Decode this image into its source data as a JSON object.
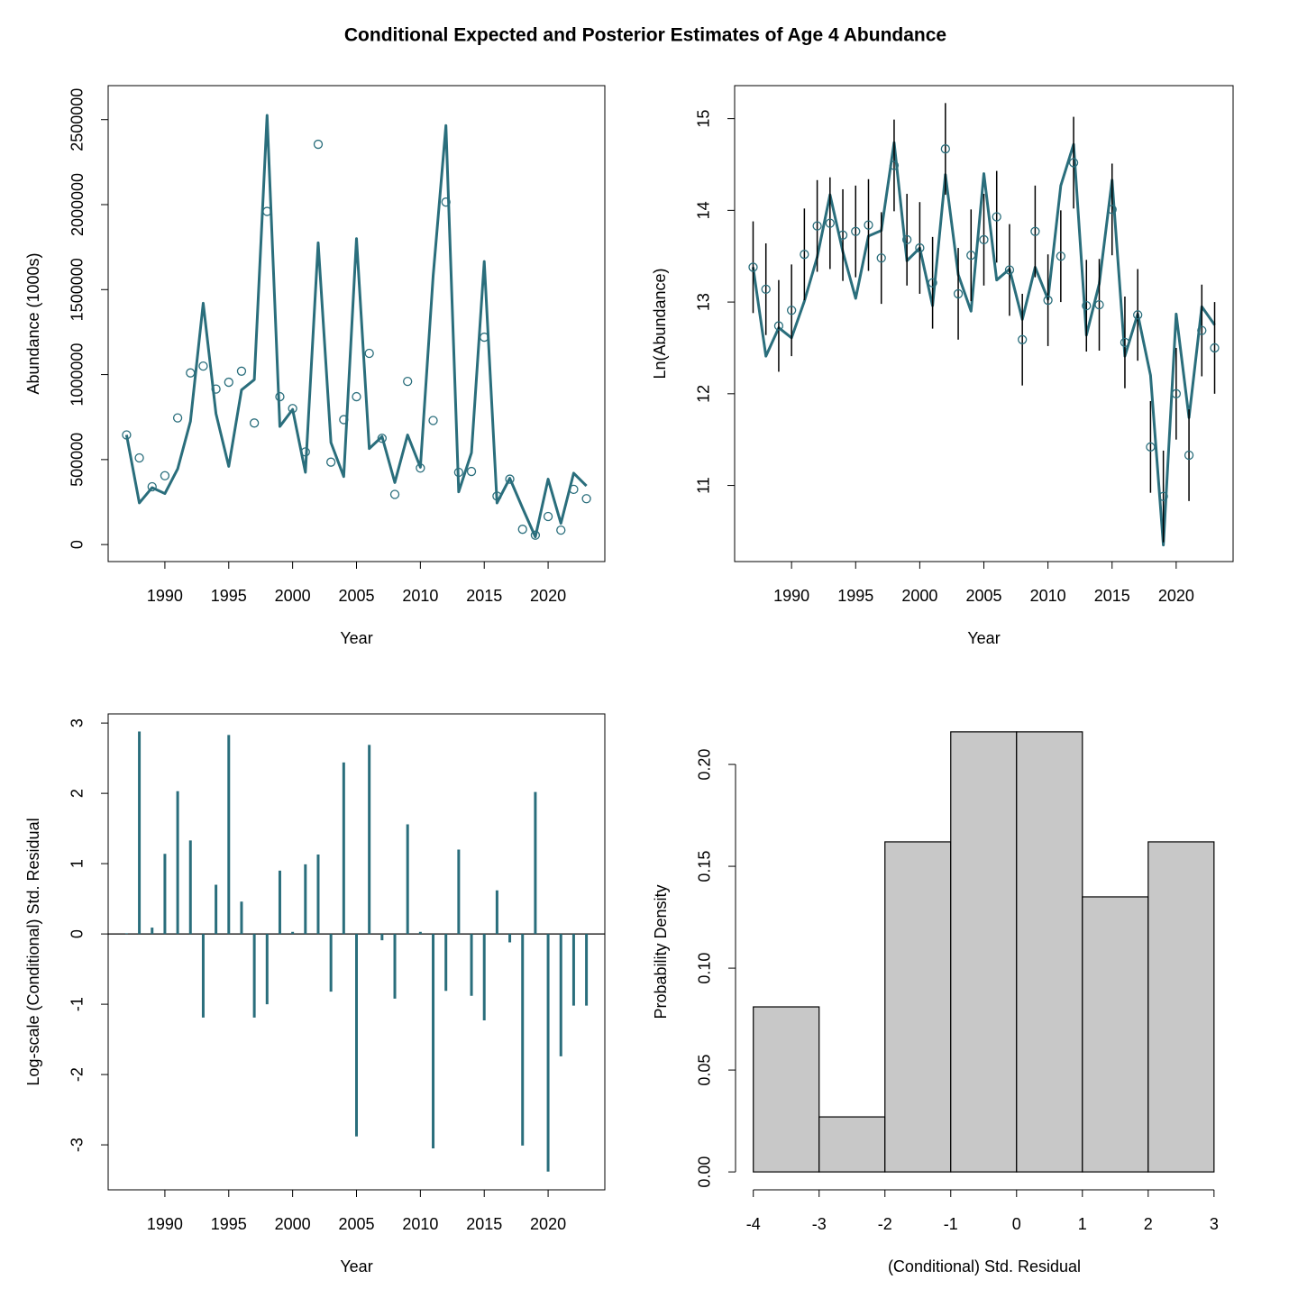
{
  "title": "Conditional Expected and Posterior Estimates of Age 4 Abundance",
  "chart_data": [
    {
      "type": "line",
      "xlabel": "Year",
      "ylabel": "Abundance (1000s)",
      "box": true,
      "x": [
        1987,
        1988,
        1989,
        1990,
        1991,
        1992,
        1993,
        1994,
        1995,
        1996,
        1997,
        1998,
        1999,
        2000,
        2001,
        2002,
        2003,
        2004,
        2005,
        2006,
        2007,
        2008,
        2009,
        2010,
        2011,
        2012,
        2013,
        2014,
        2015,
        2016,
        2017,
        2018,
        2019,
        2020,
        2021,
        2022,
        2023
      ],
      "series": [
        {
          "style": "line",
          "color": "#2a6e7c",
          "values": [
            645000,
            245000,
            335000,
            300000,
            445000,
            725000,
            1420000,
            770000,
            460000,
            910000,
            970000,
            2525000,
            695000,
            795000,
            425000,
            1775000,
            600000,
            400000,
            1800000,
            565000,
            635000,
            365000,
            645000,
            455000,
            1580000,
            2465000,
            310000,
            540000,
            1665000,
            245000,
            390000,
            215000,
            45000,
            385000,
            125000,
            420000,
            345000
          ]
        },
        {
          "style": "points",
          "color": "#2a6e7c",
          "values": [
            645000,
            510000,
            340000,
            405000,
            745000,
            1010000,
            1050000,
            915000,
            955000,
            1020000,
            715000,
            1960000,
            870000,
            800000,
            545000,
            2355000,
            485000,
            735000,
            870000,
            1125000,
            625000,
            295000,
            960000,
            450000,
            730000,
            2015000,
            425000,
            430000,
            1220000,
            285000,
            385000,
            90000,
            55000,
            165000,
            85000,
            325000,
            270000
          ]
        }
      ],
      "xlim": [
        1985.56,
        2024.44
      ],
      "xticks": [
        1990,
        1995,
        2000,
        2005,
        2010,
        2015,
        2020
      ],
      "ylim": [
        -100000,
        2700000
      ],
      "yticks": [
        0,
        500000,
        1000000,
        1500000,
        2000000,
        2500000
      ]
    },
    {
      "type": "line",
      "xlabel": "Year",
      "ylabel": "Ln(Abundance)",
      "box": true,
      "x": [
        1987,
        1988,
        1989,
        1990,
        1991,
        1992,
        1993,
        1994,
        1995,
        1996,
        1997,
        1998,
        1999,
        2000,
        2001,
        2002,
        2003,
        2004,
        2005,
        2006,
        2007,
        2008,
        2009,
        2010,
        2011,
        2012,
        2013,
        2014,
        2015,
        2016,
        2017,
        2018,
        2019,
        2020,
        2021,
        2022,
        2023
      ],
      "series": [
        {
          "style": "line",
          "color": "#2a6e7c",
          "values": [
            13.38,
            12.41,
            12.72,
            12.61,
            13.01,
            13.49,
            14.17,
            13.55,
            13.04,
            13.72,
            13.78,
            14.74,
            13.45,
            13.59,
            12.96,
            14.39,
            13.3,
            12.9,
            14.4,
            13.24,
            13.36,
            12.81,
            13.38,
            13.03,
            14.27,
            14.72,
            12.64,
            13.2,
            14.33,
            12.41,
            12.87,
            12.2,
            10.35,
            12.87,
            11.74,
            12.95,
            12.75
          ]
        },
        {
          "style": "points",
          "color": "#2a6e7c",
          "error_color": "#000000",
          "values": [
            13.38,
            13.14,
            12.74,
            12.91,
            13.52,
            13.83,
            13.86,
            13.73,
            13.77,
            13.84,
            13.48,
            14.49,
            13.68,
            13.59,
            13.21,
            14.67,
            13.09,
            13.51,
            13.68,
            13.93,
            13.35,
            12.59,
            13.77,
            13.02,
            13.5,
            14.52,
            12.96,
            12.97,
            14.01,
            12.56,
            12.86,
            11.42,
            10.88,
            12.0,
            11.33,
            12.69,
            12.5
          ],
          "errors": [
            0.5,
            0.5,
            0.5,
            0.5,
            0.5,
            0.5,
            0.5,
            0.5,
            0.5,
            0.5,
            0.5,
            0.5,
            0.5,
            0.5,
            0.5,
            0.5,
            0.5,
            0.5,
            0.5,
            0.5,
            0.5,
            0.5,
            0.5,
            0.5,
            0.5,
            0.5,
            0.5,
            0.5,
            0.5,
            0.5,
            0.5,
            0.5,
            0.5,
            0.5,
            0.5,
            0.5,
            0.5
          ]
        }
      ],
      "xlim": [
        1985.56,
        2024.44
      ],
      "xticks": [
        1990,
        1995,
        2000,
        2005,
        2010,
        2015,
        2020
      ],
      "ylim": [
        10.17,
        15.36
      ],
      "yticks": [
        11,
        12,
        13,
        14,
        15
      ]
    },
    {
      "type": "spike",
      "xlabel": "Year",
      "ylabel": "Log-scale (Conditional) Std. Residual",
      "box": true,
      "color": "#2a6e7c",
      "reference_line": 0,
      "x": [
        1987,
        1988,
        1989,
        1990,
        1991,
        1992,
        1993,
        1994,
        1995,
        1996,
        1997,
        1998,
        1999,
        2000,
        2001,
        2002,
        2003,
        2004,
        2005,
        2006,
        2007,
        2008,
        2009,
        2010,
        2011,
        2012,
        2013,
        2014,
        2015,
        2016,
        2017,
        2018,
        2019,
        2020,
        2021,
        2022,
        2023
      ],
      "values": [
        0.01,
        2.88,
        0.09,
        1.14,
        2.03,
        1.33,
        -1.19,
        0.7,
        2.83,
        0.46,
        -1.19,
        -1.0,
        0.9,
        0.03,
        0.99,
        1.13,
        -0.82,
        2.44,
        -2.88,
        2.69,
        -0.09,
        -0.92,
        1.56,
        0.03,
        -3.05,
        -0.81,
        1.2,
        -0.88,
        -1.23,
        0.62,
        -0.12,
        -3.01,
        2.02,
        -3.38,
        -1.74,
        -1.02,
        -1.02
      ],
      "xlim": [
        1985.56,
        2024.44
      ],
      "xticks": [
        1990,
        1995,
        2000,
        2005,
        2010,
        2015,
        2020
      ],
      "ylim": [
        -3.64,
        3.13
      ],
      "yticks": [
        -3,
        -2,
        -1,
        0,
        1,
        2,
        3
      ]
    },
    {
      "type": "histogram",
      "xlabel": "(Conditional) Std. Residual",
      "ylabel": "Probability Density",
      "box": false,
      "color": "#c8c8c8",
      "bins": [
        -4,
        -3,
        -2,
        -1,
        0,
        1,
        2,
        3
      ],
      "values": [
        0.081,
        0.027,
        0.162,
        0.216,
        0.216,
        0.135,
        0.162
      ],
      "xlim": [
        -4.27,
        3.29
      ],
      "xticks": [
        -4,
        -3,
        -2,
        -1,
        0,
        1,
        2,
        3
      ],
      "ylim": [
        -0.0088,
        0.2248
      ],
      "yticks": [
        {
          "value": 0,
          "label": "0.00"
        },
        {
          "value": 0.05,
          "label": "0.05"
        },
        {
          "value": 0.1,
          "label": "0.10"
        },
        {
          "value": 0.15,
          "label": "0.15"
        },
        {
          "value": 0.2,
          "label": "0.20"
        }
      ]
    }
  ]
}
